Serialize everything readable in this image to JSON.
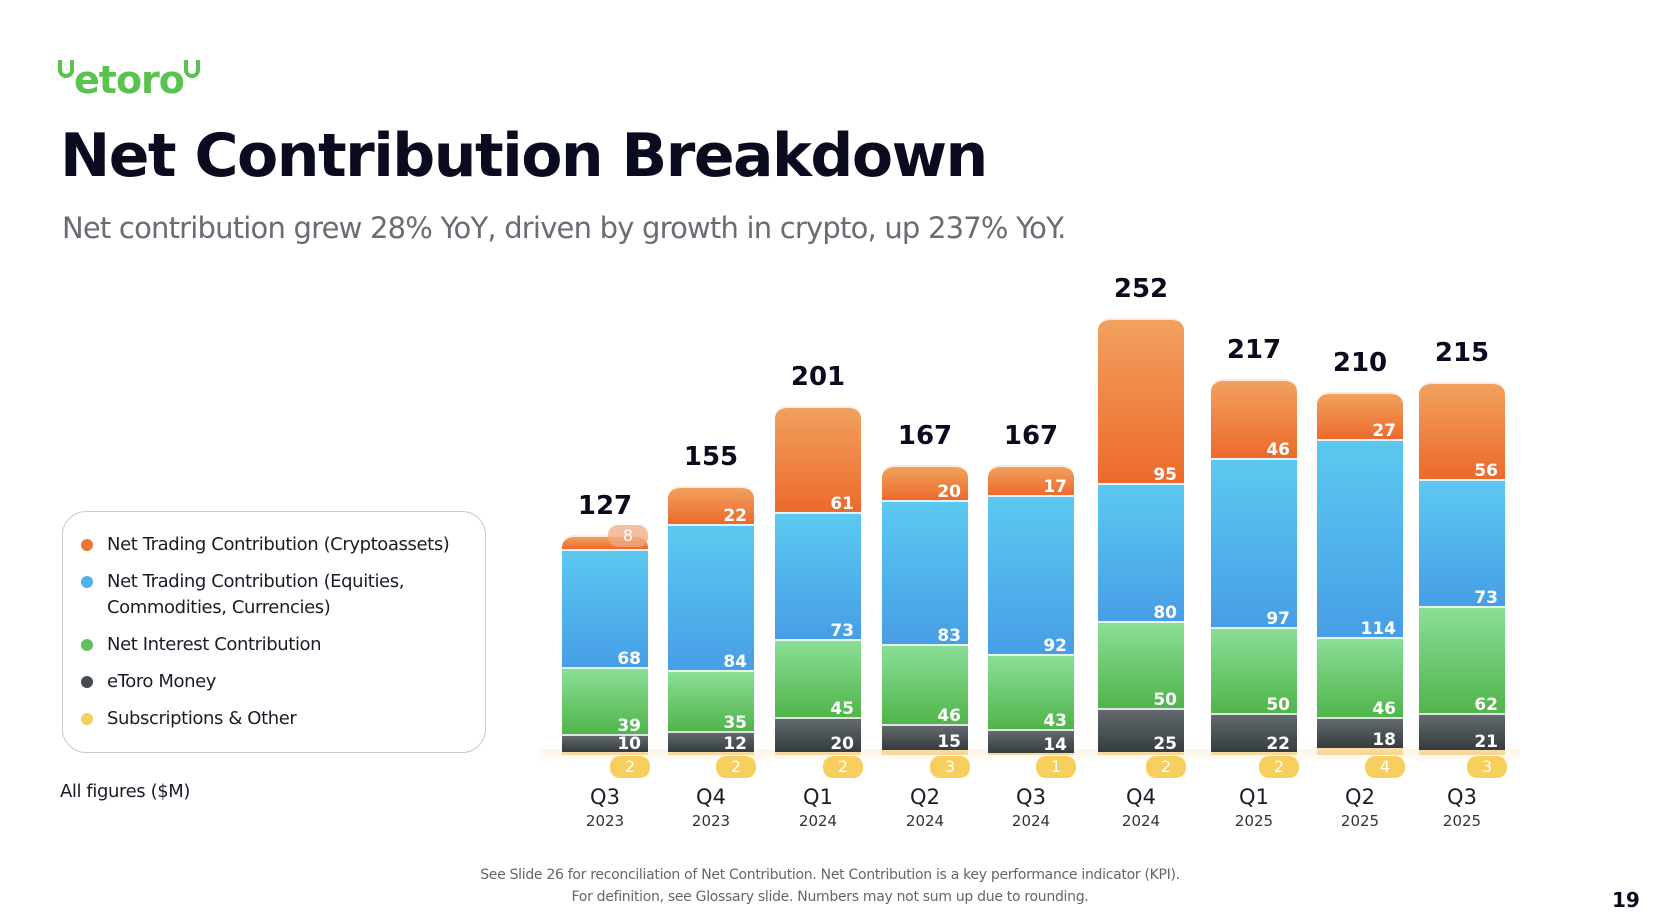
{
  "logo": "etoro",
  "title": "Net Contribution Breakdown",
  "subtitle": "Net contribution grew 28% YoY, driven by growth in crypto, up 237% YoY.",
  "units_note": "All figures ($M)",
  "footnote": [
    "See Slide 26  for reconciliation of Net Contribution. Net Contribution is a key performance indicator (KPI).",
    "For definition, see Glossary slide. Numbers may not sum up due to rounding."
  ],
  "page_number": "19",
  "colors": {
    "crypto": "#ee7634",
    "equities": "#4eb3ec",
    "interest": "#62c05c",
    "money": "#454b4f",
    "subs": "#f6cf5e",
    "brand": "#5ac24e"
  },
  "chart_data": {
    "type": "bar",
    "stacked": true,
    "categories": [
      [
        "Q3",
        "2023"
      ],
      [
        "Q4",
        "2023"
      ],
      [
        "Q1",
        "2024"
      ],
      [
        "Q2",
        "2024"
      ],
      [
        "Q3",
        "2024"
      ],
      [
        "Q4",
        "2024"
      ],
      [
        "Q1",
        "2025"
      ],
      [
        "Q2",
        "2025"
      ],
      [
        "Q3",
        "2025"
      ]
    ],
    "totals": [
      "127",
      "155",
      "201",
      "167",
      "167",
      "252",
      "217",
      "210",
      "215"
    ],
    "legend_position": "left",
    "grid": false,
    "series": [
      {
        "key": "subs",
        "name": "Subscriptions & Other",
        "values": [
          2,
          2,
          2,
          3,
          1,
          2,
          2,
          4,
          3
        ]
      },
      {
        "key": "money",
        "name": "eToro Money",
        "values": [
          10,
          12,
          20,
          15,
          14,
          25,
          22,
          18,
          21
        ]
      },
      {
        "key": "interest",
        "name": "Net Interest Contribution",
        "values": [
          39,
          35,
          45,
          46,
          43,
          50,
          50,
          46,
          62
        ]
      },
      {
        "key": "equities",
        "name": "Net Trading Contribution (Equities, Commodities, Currencies)",
        "values": [
          68,
          84,
          73,
          83,
          92,
          80,
          97,
          114,
          73
        ]
      },
      {
        "key": "crypto",
        "name": "Net Trading Contribution (Cryptoassets)",
        "values": [
          8,
          22,
          61,
          20,
          17,
          95,
          46,
          27,
          56
        ]
      }
    ]
  }
}
